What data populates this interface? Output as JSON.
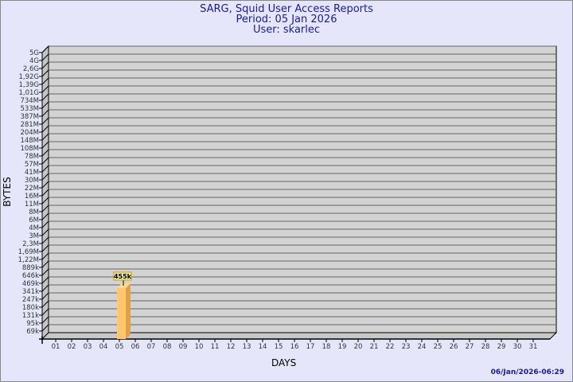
{
  "chart_data": {
    "type": "bar",
    "title": "SARG, Squid User Access Reports",
    "subtitle": [
      "Period: 05 Jan 2026",
      "User: skarlec"
    ],
    "xlabel": "DAYS",
    "ylabel": "BYTES",
    "y_scale": "log",
    "y_tick_labels": [
      "5G",
      "4G",
      "2,6G",
      "1,92G",
      "1,39G",
      "1,01G",
      "734M",
      "533M",
      "387M",
      "281M",
      "204M",
      "148M",
      "108M",
      "78M",
      "57M",
      "41M",
      "30M",
      "22M",
      "16M",
      "11M",
      "8M",
      "6M",
      "4M",
      "3M",
      "2,3M",
      "1,69M",
      "1,22M",
      "889k",
      "646k",
      "469k",
      "341k",
      "247k",
      "180k",
      "131k",
      "95k",
      "69k"
    ],
    "categories": [
      "01",
      "02",
      "03",
      "04",
      "05",
      "06",
      "07",
      "08",
      "09",
      "10",
      "11",
      "12",
      "13",
      "14",
      "15",
      "16",
      "17",
      "18",
      "19",
      "20",
      "21",
      "22",
      "23",
      "24",
      "25",
      "26",
      "27",
      "28",
      "29",
      "30",
      "31"
    ],
    "bars": [
      {
        "day": "05",
        "label": "455k"
      }
    ],
    "grid": true,
    "colors": {
      "background": "#e6e6fa",
      "plot": "#d3d3d3",
      "bar": "#ffc66e",
      "bar_side": "#e0a048",
      "title": "#1a1a9a"
    }
  },
  "footer": {
    "timestamp": "06/Jan/2026-06:29"
  }
}
